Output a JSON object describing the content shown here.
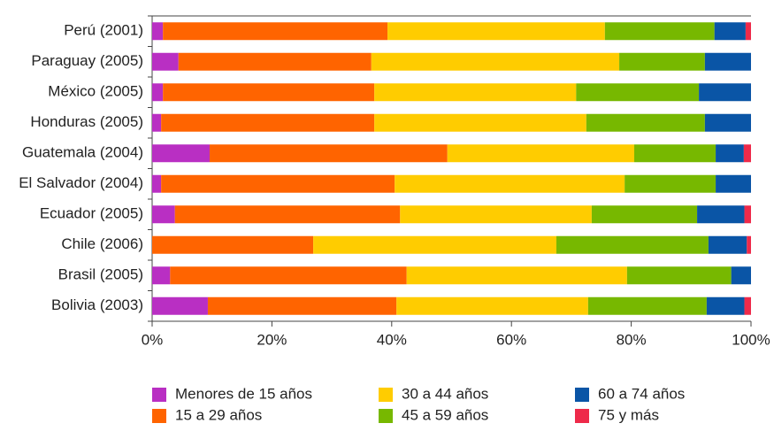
{
  "chart_data": {
    "type": "stacked-bar-horizontal",
    "categories": [
      "Perú (2001)",
      "Paraguay (2005)",
      "México (2005)",
      "Honduras (2005)",
      "Guatemala (2004)",
      "El Salvador (2004)",
      "Ecuador (2005)",
      "Chile (2006)",
      "Brasil (2005)",
      "Bolivia (2003)"
    ],
    "series": [
      {
        "name": "Menores de 15 años",
        "color": "#b92fc3",
        "values": [
          1.8,
          4.4,
          1.8,
          1.5,
          9.6,
          1.5,
          3.8,
          0,
          3.0,
          9.3
        ]
      },
      {
        "name": "15 a 29 años",
        "color": "#ff6400",
        "values": [
          37.5,
          32.2,
          35.3,
          35.6,
          39.7,
          39.0,
          37.6,
          26.9,
          39.5,
          31.5
        ]
      },
      {
        "name": "30 a 44 años",
        "color": "#ffcc00",
        "values": [
          36.3,
          41.4,
          33.7,
          35.4,
          31.2,
          38.4,
          32.0,
          40.6,
          36.8,
          32.0
        ]
      },
      {
        "name": "45 a 59 años",
        "color": "#77b800",
        "values": [
          18.3,
          14.3,
          20.5,
          19.8,
          13.6,
          15.2,
          17.6,
          25.4,
          17.4,
          19.8
        ]
      },
      {
        "name": "60 a 74 años",
        "color": "#0a55a6",
        "values": [
          5.2,
          7.7,
          8.7,
          7.7,
          4.7,
          5.9,
          7.9,
          6.4,
          3.3,
          6.3
        ]
      },
      {
        "name": "75 y más",
        "color": "#ee2a4a",
        "values": [
          0.9,
          0,
          0,
          0,
          1.2,
          0,
          1.1,
          0.7,
          0,
          1.1
        ]
      }
    ],
    "xlim": [
      0,
      100
    ],
    "xticks": [
      {
        "value": 0,
        "label": "0%"
      },
      {
        "value": 20,
        "label": "20%"
      },
      {
        "value": 40,
        "label": "40%"
      },
      {
        "value": 60,
        "label": "60%"
      },
      {
        "value": 80,
        "label": "80%"
      },
      {
        "value": 100,
        "label": "100%"
      }
    ]
  }
}
